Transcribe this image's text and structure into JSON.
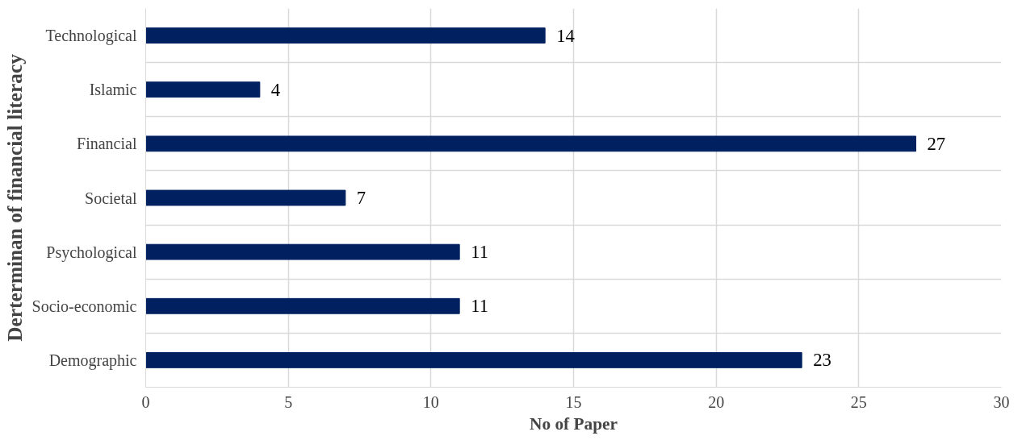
{
  "chart_data": {
    "type": "bar",
    "orientation": "horizontal",
    "categories": [
      "Technological",
      "Islamic",
      "Financial",
      "Societal",
      "Psychological",
      "Socio-economic",
      "Demographic"
    ],
    "values": [
      14,
      4,
      27,
      7,
      11,
      11,
      23
    ],
    "color": "#002060",
    "xlim": [
      0,
      30
    ],
    "xticks": [
      0,
      5,
      10,
      15,
      20,
      25,
      30
    ],
    "xlabel": "No of Paper",
    "ylabel": "Derterminan of financial literacy",
    "grid": true,
    "data_labels": true
  }
}
